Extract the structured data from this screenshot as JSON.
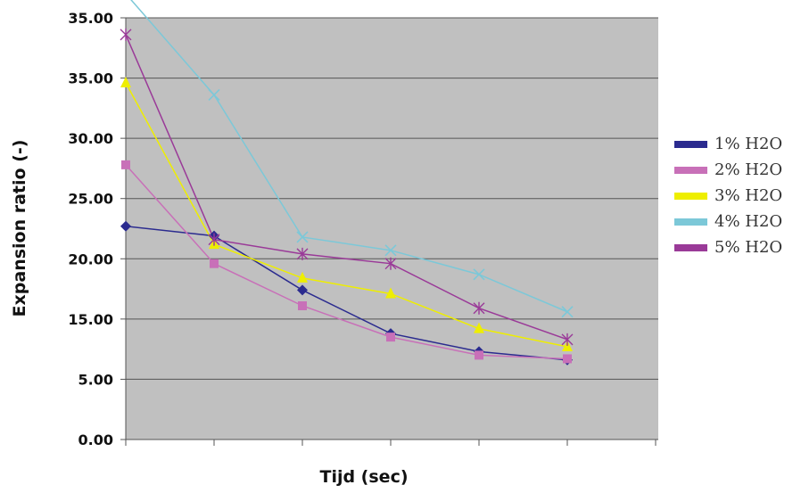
{
  "chart_data": {
    "type": "line",
    "title": "",
    "xlabel": "Tijd (sec)",
    "ylabel": "Expansion ratio (-)",
    "y_tick_labels": [
      "0.00",
      "5.00",
      "15.00",
      "20.00",
      "25.00",
      "30.00",
      "35.00",
      "35.00"
    ],
    "ylim": [
      0,
      35
    ],
    "x_points": 6,
    "grid": true,
    "legend_position": "right",
    "series": [
      {
        "name": "1% H2O",
        "color": "#2b2b8f",
        "marker": "diamond",
        "values": [
          17.7,
          16.9,
          12.4,
          8.8,
          7.3,
          6.6
        ]
      },
      {
        "name": "2% H2O",
        "color": "#c870b8",
        "marker": "square",
        "values": [
          22.8,
          14.6,
          11.1,
          8.5,
          7.0,
          6.7
        ]
      },
      {
        "name": "3% H2O",
        "color": "#eeee00",
        "marker": "triangle",
        "values": [
          29.6,
          16.2,
          13.4,
          12.1,
          9.2,
          7.7
        ]
      },
      {
        "name": "4% H2O",
        "color": "#7cc8d8",
        "marker": "x",
        "values": [
          37.0,
          28.6,
          16.8,
          15.7,
          13.7,
          10.6
        ]
      },
      {
        "name": "5% H2O",
        "color": "#9a3a98",
        "marker": "star",
        "values": [
          33.6,
          16.6,
          15.4,
          14.6,
          10.9,
          8.3
        ]
      }
    ]
  }
}
